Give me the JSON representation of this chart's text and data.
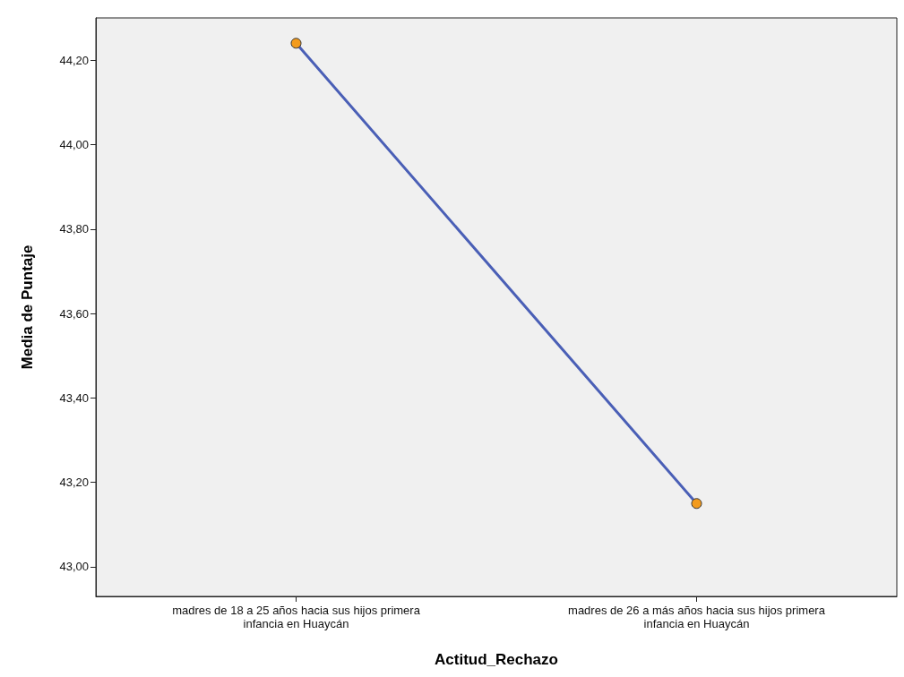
{
  "chart_data": {
    "type": "line",
    "xlabel": "Actitud_Rechazo",
    "ylabel": "Media de Puntaje",
    "categories": [
      "madres de 18 a 25 años hacia sus hijos primera\ninfancia en Huaycán",
      "madres de 26 a más años hacia sus hijos primera\ninfancia en Huaycán"
    ],
    "series": [
      {
        "color": "#4a5fb6",
        "values": [
          44.24,
          43.15
        ]
      }
    ],
    "ylim": [
      42.93,
      44.3
    ],
    "yticks": [
      {
        "value": 43,
        "label": "43,00"
      },
      {
        "value": 43.2,
        "label": "43,20"
      },
      {
        "value": 43.4,
        "label": "43,40"
      },
      {
        "value": 43.6,
        "label": "43,60"
      },
      {
        "value": 43.8,
        "label": "43,80"
      },
      {
        "value": 44,
        "label": "44,00"
      },
      {
        "value": 44.2,
        "label": "44,20"
      }
    ],
    "marker": "circle",
    "line_style": "solid"
  }
}
